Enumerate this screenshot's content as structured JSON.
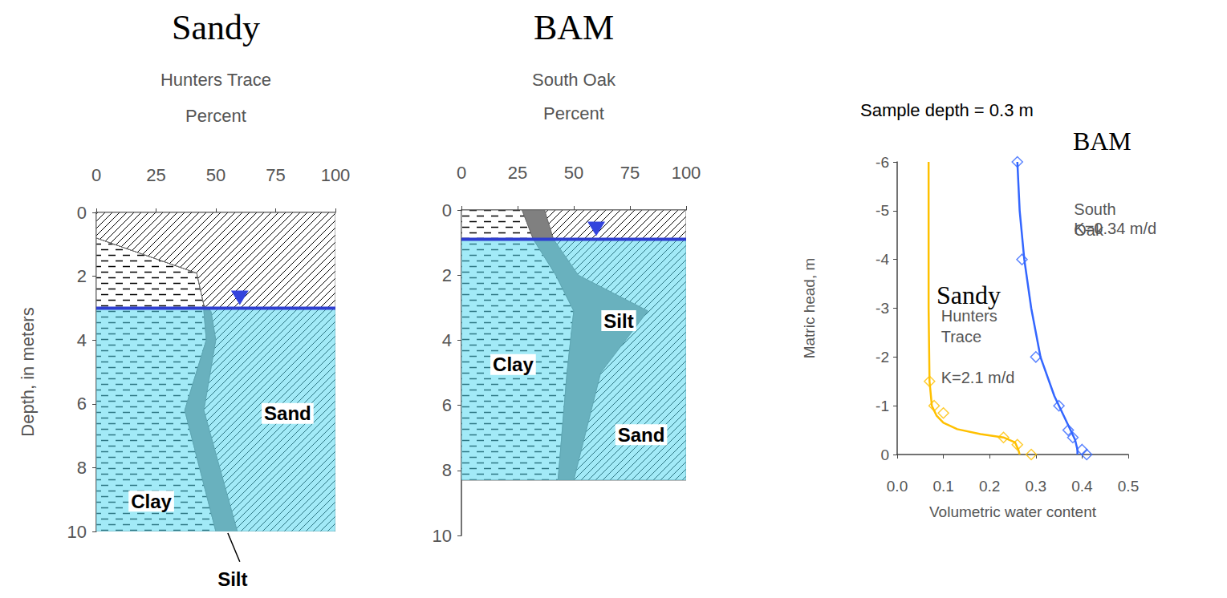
{
  "chart_data": [
    {
      "type": "area",
      "orientation": "horizontal",
      "stacked": true,
      "title": "Sandy",
      "subtitle": "Hunters Trace",
      "xlabel": "Percent",
      "ylabel": "Depth, in meters",
      "xlim": [
        0,
        100
      ],
      "xticks": [
        0,
        25,
        50,
        75,
        100
      ],
      "ylim": [
        10,
        0
      ],
      "yticks": [
        0,
        2,
        4,
        6,
        8,
        10
      ],
      "grid": false,
      "water_table_depth": 3,
      "depth": [
        0,
        0.8,
        1.9,
        2.9,
        3.1,
        4,
        6.2,
        10
      ],
      "series": [
        {
          "name": "Clay",
          "color": "#ffffff",
          "values": [
            0,
            0,
            42,
            45,
            45,
            46,
            37,
            50
          ]
        },
        {
          "name": "Silt",
          "color": "#808080",
          "values": [
            0,
            0,
            0,
            0,
            3,
            4,
            8,
            9
          ]
        },
        {
          "name": "Sand",
          "color": "#ffffff",
          "values": [
            100,
            100,
            58,
            55,
            52,
            50,
            55,
            41
          ]
        }
      ]
    },
    {
      "type": "area",
      "orientation": "horizontal",
      "stacked": true,
      "title": "BAM",
      "subtitle": "South Oak",
      "xlabel": "Percent",
      "xlim": [
        0,
        100
      ],
      "xticks": [
        0,
        25,
        50,
        75,
        100
      ],
      "ylim": [
        10,
        0
      ],
      "yticks": [
        0,
        2,
        4,
        6,
        8,
        10
      ],
      "grid": false,
      "water_table_depth": 0.9,
      "depth": [
        0,
        0.9,
        2,
        3.1,
        5,
        8.3
      ],
      "series": [
        {
          "name": "Clay",
          "color": "#ffffff",
          "values": [
            27,
            32,
            42,
            50,
            47,
            43
          ]
        },
        {
          "name": "Silt",
          "color": "#808080",
          "values": [
            10,
            9,
            10,
            33,
            15,
            7
          ]
        },
        {
          "name": "Sand",
          "color": "#ffffff",
          "values": [
            63,
            59,
            48,
            17,
            38,
            50
          ]
        }
      ]
    },
    {
      "type": "line",
      "annotation": "Sample depth = 0.3 m",
      "xlabel": "Volumetric water content",
      "ylabel": "Matric head, m",
      "xlim": [
        0,
        0.5
      ],
      "xticks": [
        {
          "value": 0,
          "label": "0.0"
        },
        0.1,
        0.2,
        0.3,
        0.4,
        0.5
      ],
      "ylim": [
        0,
        -6
      ],
      "yticks": [
        0,
        -1,
        -2,
        -3,
        -4,
        -5,
        -6
      ],
      "grid": false,
      "series": [
        {
          "name": "Hunters Trace",
          "group": "Sandy",
          "k": "K=2.1 m/d",
          "color": "#ffc000",
          "marker": "diamond",
          "x": [
            0.07,
            0.08,
            0.1,
            0.23,
            0.26,
            0.29
          ],
          "values": [
            -1.5,
            -1.0,
            -0.85,
            -0.35,
            -0.2,
            0
          ],
          "fit_x": [
            0.068,
            0.068,
            0.07,
            0.075,
            0.085,
            0.1,
            0.13,
            0.18,
            0.23,
            0.255,
            0.262,
            0.265
          ],
          "fit_values": [
            -6,
            -3,
            -1.5,
            -1.0,
            -0.8,
            -0.65,
            -0.52,
            -0.42,
            -0.35,
            -0.25,
            -0.1,
            0
          ]
        },
        {
          "name": "South Oak",
          "group": "BAM",
          "k": "K=0.34 m/d",
          "color": "#3366ff",
          "marker": "diamond",
          "x": [
            0.26,
            0.27,
            0.3,
            0.35,
            0.37,
            0.38,
            0.4,
            0.41
          ],
          "values": [
            -6,
            -4,
            -2,
            -1,
            -0.5,
            -0.35,
            -0.1,
            0
          ],
          "fit_x": [
            0.26,
            0.265,
            0.275,
            0.29,
            0.31,
            0.34,
            0.36,
            0.375,
            0.385,
            0.39,
            0.39
          ],
          "fit_values": [
            -6,
            -5,
            -4,
            -3,
            -2,
            -1.2,
            -0.8,
            -0.5,
            -0.3,
            -0.1,
            0
          ]
        }
      ]
    }
  ]
}
